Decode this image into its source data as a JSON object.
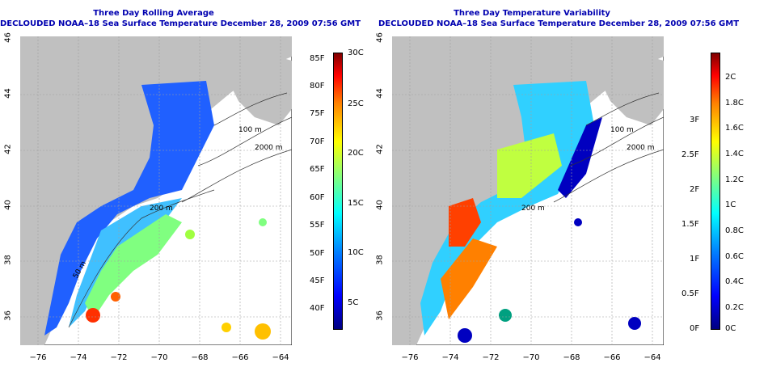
{
  "left_map": {
    "title_line1": "Three Day Rolling Average",
    "title_line2": "DECLOUDED NOAA–18 Sea Surface Temperature December 28, 2009 07:56 GMT",
    "colorbar_f": [
      "85F",
      "80F",
      "75F",
      "70F",
      "65F",
      "60F",
      "55F",
      "50F",
      "45F",
      "40F"
    ],
    "colorbar_c": [
      "30C",
      "25C",
      "20C",
      "15C",
      "10C",
      "5C"
    ]
  },
  "right_map": {
    "title_line1": "Three Day Temperature Variability",
    "title_line2": "DECLOUDED NOAA–18 Sea Surface Temperature December 28, 2009 07:56 GMT",
    "colorbar_f": [
      "3F",
      "2.5F",
      "2F",
      "1.5F",
      "1F",
      "0.5F",
      "0F"
    ],
    "colorbar_c": [
      "2C",
      "1.8C",
      "1.6C",
      "1.4C",
      "1.2C",
      "1C",
      "0.8C",
      "0.6C",
      "0.4C",
      "0.2C",
      "0C"
    ]
  },
  "axes": {
    "x_ticks": [
      "−76",
      "−74",
      "−72",
      "−70",
      "−68",
      "−66",
      "−64"
    ],
    "y_ticks": [
      "36",
      "38",
      "40",
      "42",
      "44",
      "46"
    ]
  },
  "contour_labels": [
    "100 m",
    "200 m",
    "2000 m",
    "50 m"
  ],
  "colors": {
    "title": "#0000b0",
    "land": "#c0c0c0",
    "grid": "#a0a0a0"
  }
}
